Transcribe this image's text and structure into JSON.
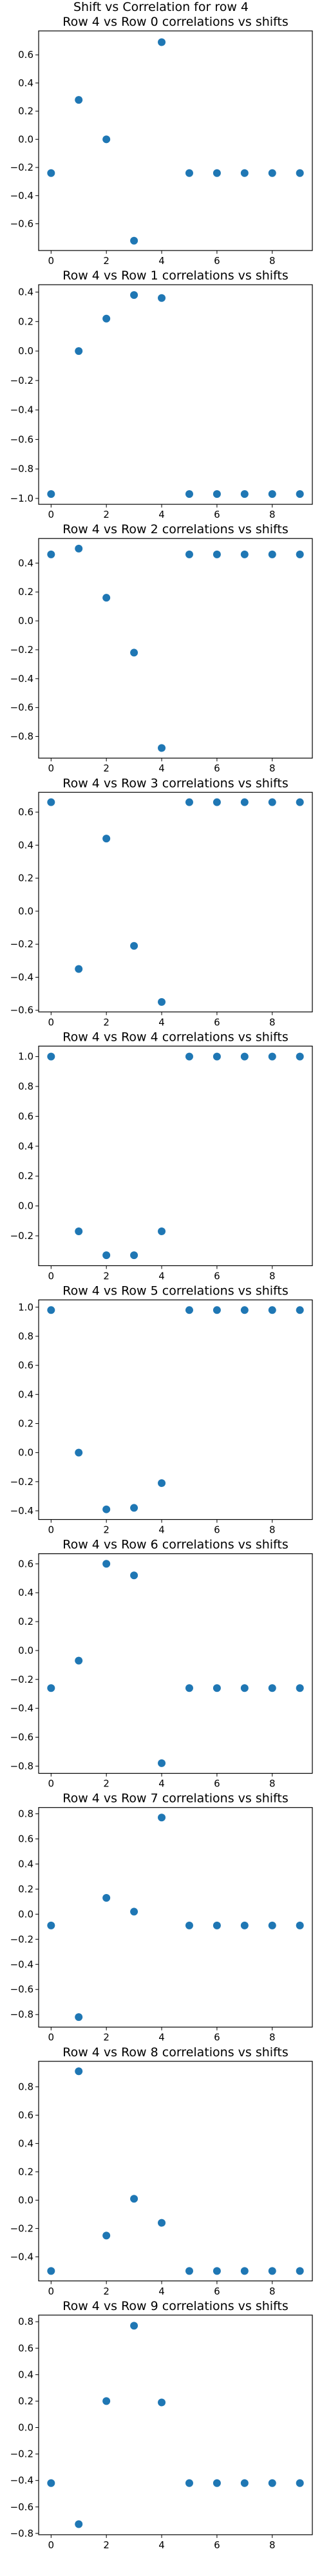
{
  "figure": {
    "suptitle": "Shift vs Correlation for row 4"
  },
  "style": {
    "marker_color": "#1f77b4"
  },
  "chart_data": [
    {
      "type": "scatter",
      "title": "Row 4 vs Row 0 correlations vs shifts",
      "xlabel": "",
      "ylabel": "",
      "x": [
        0,
        1,
        2,
        3,
        4,
        5,
        6,
        7,
        8,
        9
      ],
      "y": [
        -0.24,
        0.28,
        0.0,
        -0.72,
        0.69,
        -0.24,
        -0.24,
        -0.24,
        -0.24,
        -0.24
      ],
      "xlim": [
        -0.45,
        9.45
      ],
      "ylim": [
        -0.79,
        0.77
      ],
      "xticks": [
        0,
        2,
        4,
        6,
        8
      ],
      "yticks": [
        -0.6,
        -0.4,
        -0.2,
        0.0,
        0.2,
        0.4,
        0.6
      ],
      "grid": false
    },
    {
      "type": "scatter",
      "title": "Row 4 vs Row 1 correlations vs shifts",
      "xlabel": "",
      "ylabel": "",
      "x": [
        0,
        1,
        2,
        3,
        4,
        5,
        6,
        7,
        8,
        9
      ],
      "y": [
        -0.97,
        0.0,
        0.22,
        0.38,
        0.36,
        -0.97,
        -0.97,
        -0.97,
        -0.97,
        -0.97
      ],
      "xlim": [
        -0.45,
        9.45
      ],
      "ylim": [
        -1.04,
        0.45
      ],
      "xticks": [
        0,
        2,
        4,
        6,
        8
      ],
      "yticks": [
        -1.0,
        -0.8,
        -0.6,
        -0.4,
        -0.2,
        0.0,
        0.2,
        0.4
      ],
      "grid": false
    },
    {
      "type": "scatter",
      "title": "Row 4 vs Row 2 correlations vs shifts",
      "xlabel": "",
      "ylabel": "",
      "x": [
        0,
        1,
        2,
        3,
        4,
        5,
        6,
        7,
        8,
        9
      ],
      "y": [
        0.46,
        0.5,
        0.16,
        -0.22,
        -0.88,
        0.46,
        0.46,
        0.46,
        0.46,
        0.46
      ],
      "xlim": [
        -0.45,
        9.45
      ],
      "ylim": [
        -0.95,
        0.57
      ],
      "xticks": [
        0,
        2,
        4,
        6,
        8
      ],
      "yticks": [
        -0.8,
        -0.6,
        -0.4,
        -0.2,
        0.0,
        0.2,
        0.4
      ],
      "grid": false
    },
    {
      "type": "scatter",
      "title": "Row 4 vs Row 3 correlations vs shifts",
      "xlabel": "",
      "ylabel": "",
      "x": [
        0,
        1,
        2,
        3,
        4,
        5,
        6,
        7,
        8,
        9
      ],
      "y": [
        0.66,
        -0.35,
        0.44,
        -0.21,
        -0.55,
        0.66,
        0.66,
        0.66,
        0.66,
        0.66
      ],
      "xlim": [
        -0.45,
        9.45
      ],
      "ylim": [
        -0.61,
        0.72
      ],
      "xticks": [
        0,
        2,
        4,
        6,
        8
      ],
      "yticks": [
        -0.6,
        -0.4,
        -0.2,
        0.0,
        0.2,
        0.4,
        0.6
      ],
      "grid": false
    },
    {
      "type": "scatter",
      "title": "Row 4 vs Row 4 correlations vs shifts",
      "xlabel": "",
      "ylabel": "",
      "x": [
        0,
        1,
        2,
        3,
        4,
        5,
        6,
        7,
        8,
        9
      ],
      "y": [
        1.0,
        -0.17,
        -0.33,
        -0.33,
        -0.17,
        1.0,
        1.0,
        1.0,
        1.0,
        1.0
      ],
      "xlim": [
        -0.45,
        9.45
      ],
      "ylim": [
        -0.4,
        1.07
      ],
      "xticks": [
        0,
        2,
        4,
        6,
        8
      ],
      "yticks": [
        -0.2,
        0.0,
        0.2,
        0.4,
        0.6,
        0.8,
        1.0
      ],
      "grid": false
    },
    {
      "type": "scatter",
      "title": "Row 4 vs Row 5 correlations vs shifts",
      "xlabel": "",
      "ylabel": "",
      "x": [
        0,
        1,
        2,
        3,
        4,
        5,
        6,
        7,
        8,
        9
      ],
      "y": [
        0.98,
        0.0,
        -0.39,
        -0.38,
        -0.21,
        0.98,
        0.98,
        0.98,
        0.98,
        0.98
      ],
      "xlim": [
        -0.45,
        9.45
      ],
      "ylim": [
        -0.46,
        1.05
      ],
      "xticks": [
        0,
        2,
        4,
        6,
        8
      ],
      "yticks": [
        -0.4,
        -0.2,
        0.0,
        0.2,
        0.4,
        0.6,
        0.8,
        1.0
      ],
      "grid": false
    },
    {
      "type": "scatter",
      "title": "Row 4 vs Row 6 correlations vs shifts",
      "xlabel": "",
      "ylabel": "",
      "x": [
        0,
        1,
        2,
        3,
        4,
        5,
        6,
        7,
        8,
        9
      ],
      "y": [
        -0.26,
        -0.07,
        0.6,
        0.52,
        -0.78,
        -0.26,
        -0.26,
        -0.26,
        -0.26,
        -0.26
      ],
      "xlim": [
        -0.45,
        9.45
      ],
      "ylim": [
        -0.85,
        0.67
      ],
      "xticks": [
        0,
        2,
        4,
        6,
        8
      ],
      "yticks": [
        -0.8,
        -0.6,
        -0.4,
        -0.2,
        0.0,
        0.2,
        0.4,
        0.6
      ],
      "grid": false
    },
    {
      "type": "scatter",
      "title": "Row 4 vs Row 7 correlations vs shifts",
      "xlabel": "",
      "ylabel": "",
      "x": [
        0,
        1,
        2,
        3,
        4,
        5,
        6,
        7,
        8,
        9
      ],
      "y": [
        -0.09,
        -0.82,
        0.13,
        0.02,
        0.77,
        -0.09,
        -0.09,
        -0.09,
        -0.09,
        -0.09
      ],
      "xlim": [
        -0.45,
        9.45
      ],
      "ylim": [
        -0.9,
        0.85
      ],
      "xticks": [
        0,
        2,
        4,
        6,
        8
      ],
      "yticks": [
        -0.8,
        -0.6,
        -0.4,
        -0.2,
        0.0,
        0.2,
        0.4,
        0.6,
        0.8
      ],
      "grid": false
    },
    {
      "type": "scatter",
      "title": "Row 4 vs Row 8 correlations vs shifts",
      "xlabel": "",
      "ylabel": "",
      "x": [
        0,
        1,
        2,
        3,
        4,
        5,
        6,
        7,
        8,
        9
      ],
      "y": [
        -0.5,
        0.91,
        -0.25,
        0.01,
        -0.16,
        -0.5,
        -0.5,
        -0.5,
        -0.5,
        -0.5
      ],
      "xlim": [
        -0.45,
        9.45
      ],
      "ylim": [
        -0.57,
        0.98
      ],
      "xticks": [
        0,
        2,
        4,
        6,
        8
      ],
      "yticks": [
        -0.4,
        -0.2,
        0.0,
        0.2,
        0.4,
        0.6,
        0.8
      ],
      "grid": false
    },
    {
      "type": "scatter",
      "title": "Row 4 vs Row 9 correlations vs shifts",
      "xlabel": "",
      "ylabel": "",
      "x": [
        0,
        1,
        2,
        3,
        4,
        5,
        6,
        7,
        8,
        9
      ],
      "y": [
        -0.42,
        -0.73,
        0.2,
        0.77,
        0.19,
        -0.42,
        -0.42,
        -0.42,
        -0.42,
        -0.42
      ],
      "xlim": [
        -0.45,
        9.45
      ],
      "ylim": [
        -0.81,
        0.85
      ],
      "xticks": [
        0,
        2,
        4,
        6,
        8
      ],
      "yticks": [
        -0.8,
        -0.6,
        -0.4,
        -0.2,
        0.0,
        0.2,
        0.4,
        0.6,
        0.8
      ],
      "grid": false
    }
  ]
}
